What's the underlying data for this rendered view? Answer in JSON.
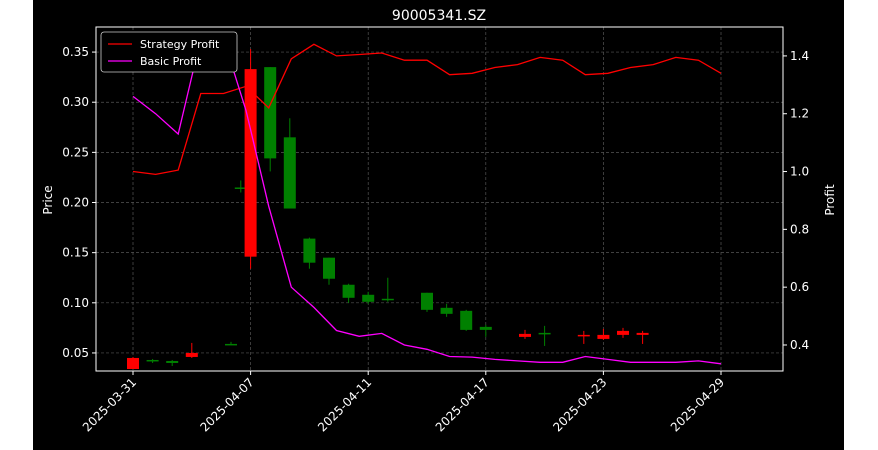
{
  "figure": {
    "background": "#000000",
    "page_background": "#ffffff"
  },
  "chart_data": {
    "type": "candlestick+line",
    "title": "90005341.SZ",
    "ylabel_left": "Price",
    "ylabel_right": "Profit",
    "ylim_left": [
      0.032,
      0.375
    ],
    "ylim_right": [
      0.31,
      1.5
    ],
    "yticks_left": [
      "0.05",
      "0.10",
      "0.15",
      "0.20",
      "0.25",
      "0.30",
      "0.35"
    ],
    "yticks_left_values": [
      0.05,
      0.1,
      0.15,
      0.2,
      0.25,
      0.3,
      0.35
    ],
    "yticks_right": [
      "0.4",
      "0.6",
      "0.8",
      "1.0",
      "1.2",
      "1.4"
    ],
    "yticks_right_values": [
      0.4,
      0.6,
      0.8,
      1.0,
      1.2,
      1.4
    ],
    "xtick_labels": [
      "2025-03-31",
      "2025-04-07",
      "2025-04-11",
      "2025-04-17",
      "2025-04-23",
      "2025-04-29"
    ],
    "xtick_indices": [
      0,
      6,
      12,
      18,
      24,
      30
    ],
    "grid": true,
    "legend_position": "top-left",
    "up_color": "#008000",
    "down_color": "#ff0000",
    "candles": [
      {
        "o": 0.045,
        "h": 0.046,
        "l": 0.034,
        "c": 0.034
      },
      {
        "o": 0.042,
        "h": 0.044,
        "l": 0.04,
        "c": 0.043
      },
      {
        "o": 0.04,
        "h": 0.043,
        "l": 0.037,
        "c": 0.042
      },
      {
        "o": 0.05,
        "h": 0.06,
        "l": 0.045,
        "c": 0.046
      },
      {
        "o": 0.059,
        "h": 0.061,
        "l": 0.058,
        "c": 0.059
      },
      {
        "o": 0.215,
        "h": 0.222,
        "l": 0.21,
        "c": 0.215
      },
      {
        "o": 0.333,
        "h": 0.353,
        "l": 0.134,
        "c": 0.146
      },
      {
        "o": 0.244,
        "h": 0.335,
        "l": 0.231,
        "c": 0.335
      },
      {
        "o": 0.194,
        "h": 0.284,
        "l": 0.194,
        "c": 0.265
      },
      {
        "o": 0.14,
        "h": 0.165,
        "l": 0.134,
        "c": 0.164
      },
      {
        "o": 0.124,
        "h": 0.145,
        "l": 0.118,
        "c": 0.145
      },
      {
        "o": 0.105,
        "h": 0.119,
        "l": 0.1,
        "c": 0.118
      },
      {
        "o": 0.101,
        "h": 0.111,
        "l": 0.099,
        "c": 0.108
      },
      {
        "o": 0.103,
        "h": 0.125,
        "l": 0.101,
        "c": 0.104
      },
      {
        "o": 0.093,
        "h": 0.11,
        "l": 0.091,
        "c": 0.11
      },
      {
        "o": 0.089,
        "h": 0.099,
        "l": 0.086,
        "c": 0.095
      },
      {
        "o": 0.073,
        "h": 0.093,
        "l": 0.072,
        "c": 0.092
      },
      {
        "o": 0.073,
        "h": 0.078,
        "l": 0.066,
        "c": 0.076
      },
      {
        "o": 0.069,
        "h": 0.073,
        "l": 0.064,
        "c": 0.066
      },
      {
        "o": 0.069,
        "h": 0.077,
        "l": 0.057,
        "c": 0.07
      },
      {
        "o": 0.068,
        "h": 0.072,
        "l": 0.059,
        "c": 0.067
      },
      {
        "o": 0.068,
        "h": 0.074,
        "l": 0.063,
        "c": 0.064
      },
      {
        "o": 0.072,
        "h": 0.075,
        "l": 0.065,
        "c": 0.068
      },
      {
        "o": 0.07,
        "h": 0.072,
        "l": 0.059,
        "c": 0.068
      }
    ],
    "candle_indices": [
      0,
      1,
      2,
      3,
      4,
      5,
      6,
      7,
      8,
      10,
      11,
      12,
      13,
      14,
      16,
      17,
      18,
      19,
      20,
      21,
      22,
      23,
      24,
      25
    ],
    "candle_days": [
      0,
      1,
      2,
      3,
      5,
      5.5,
      6,
      7,
      8,
      9,
      10,
      11,
      12,
      13,
      15,
      16,
      17,
      18,
      20,
      21,
      23,
      24,
      25,
      26
    ],
    "series": [
      {
        "name": "Strategy Profit",
        "color": "#ff0000",
        "x": [
          0,
          1,
          2,
          3,
          4,
          5,
          6,
          7,
          8,
          9,
          10,
          11,
          12,
          13,
          14,
          15,
          16,
          17,
          18,
          19,
          20,
          21,
          22,
          23,
          24,
          25,
          26
        ],
        "values": [
          1.0,
          0.99,
          1.005,
          1.27,
          1.27,
          1.295,
          1.22,
          1.39,
          1.44,
          1.4,
          1.405,
          1.41,
          1.385,
          1.385,
          1.335,
          1.34,
          1.36,
          1.37,
          1.395,
          1.385,
          1.335,
          1.34,
          1.36,
          1.37,
          1.395,
          1.385,
          1.34
        ]
      },
      {
        "name": "Basic Profit",
        "color": "#ff00ff",
        "x": [
          0,
          1,
          2,
          3,
          4,
          5,
          6,
          7,
          8,
          9,
          10,
          11,
          12,
          13,
          14,
          15,
          16,
          17,
          18,
          19,
          20,
          21,
          22,
          23,
          24,
          25,
          26
        ],
        "values": [
          1.26,
          1.2,
          1.13,
          1.46,
          1.46,
          1.21,
          0.88,
          0.6,
          0.53,
          0.45,
          0.43,
          0.44,
          0.4,
          0.385,
          0.36,
          0.358,
          0.35,
          0.345,
          0.34,
          0.34,
          0.36,
          0.35,
          0.34,
          0.34,
          0.34,
          0.345,
          0.335
        ]
      }
    ]
  }
}
